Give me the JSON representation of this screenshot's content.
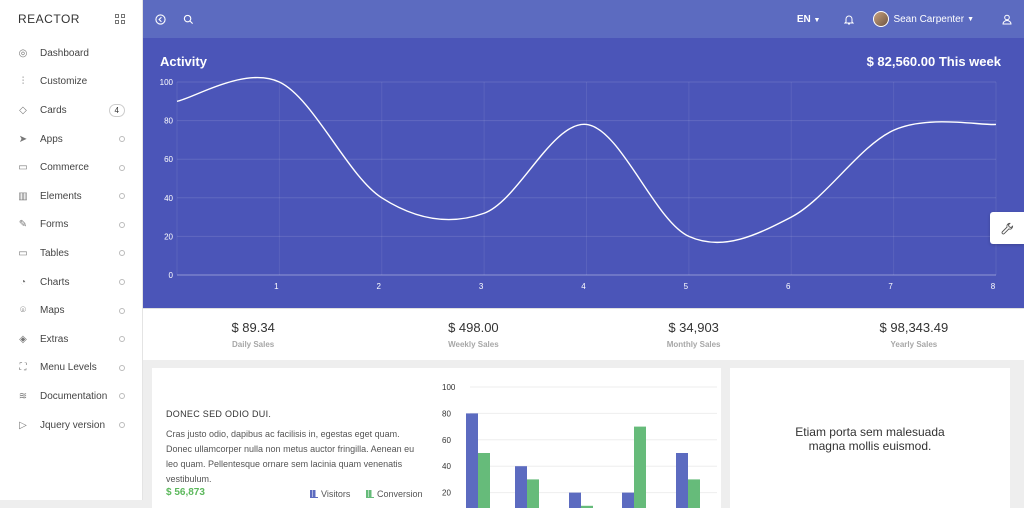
{
  "brand": "REACTOR",
  "sidebar": {
    "items": [
      {
        "label": "Dashboard",
        "icon": "compass-icon",
        "glyph": "◎"
      },
      {
        "label": "Customize",
        "icon": "sliders-icon",
        "glyph": "⫶"
      },
      {
        "label": "Cards",
        "icon": "droplet-icon",
        "glyph": "◇",
        "badge": "4"
      },
      {
        "label": "Apps",
        "icon": "send-icon",
        "glyph": "➤"
      },
      {
        "label": "Commerce",
        "icon": "cart-icon",
        "glyph": "▭"
      },
      {
        "label": "Elements",
        "icon": "book-icon",
        "glyph": "▥"
      },
      {
        "label": "Forms",
        "icon": "pencil-icon",
        "glyph": "✎"
      },
      {
        "label": "Tables",
        "icon": "monitor-icon",
        "glyph": "▭"
      },
      {
        "label": "Charts",
        "icon": "pie-chart-icon",
        "glyph": "◔"
      },
      {
        "label": "Maps",
        "icon": "map-pin-icon",
        "glyph": "⌾"
      },
      {
        "label": "Extras",
        "icon": "tag-icon",
        "glyph": "◈"
      },
      {
        "label": "Menu Levels",
        "icon": "expand-icon",
        "glyph": "⛶"
      },
      {
        "label": "Documentation",
        "icon": "layers-icon",
        "glyph": "≋"
      },
      {
        "label": "Jquery version",
        "icon": "play-icon",
        "glyph": "▷"
      }
    ]
  },
  "topbar": {
    "language": "EN",
    "user_name": "Sean Carpenter"
  },
  "activity": {
    "title": "Activity",
    "total": "$ 82,560.00 This week"
  },
  "stats": [
    {
      "value": "$ 89.34",
      "label": "Daily Sales"
    },
    {
      "value": "$ 498.00",
      "label": "Weekly Sales"
    },
    {
      "value": "$ 34,903",
      "label": "Monthly Sales"
    },
    {
      "value": "$ 98,343.49",
      "label": "Yearly Sales"
    }
  ],
  "card_info": {
    "heading": "DONEC SED ODIO DUI.",
    "paragraph": "Cras justo odio, dapibus ac facilisis in, egestas eget quam. Donec ullamcorper nulla non metus auctor fringilla. Aenean eu leo quam. Pellentesque ornare sem lacinia quam venenatis vestibulum.",
    "amount": "$ 56,873",
    "legend_visitors": "Visitors",
    "legend_conversion": "Conversion"
  },
  "card_quote": {
    "text": "Etiam porta sem malesuada magna mollis euismod."
  },
  "colors": {
    "topbar": "#5c6bc0",
    "activity_bg": "#4b55b8",
    "visitors": "#5c6bc0",
    "conversion": "#66bb7a",
    "amount_green": "#5cb85c"
  },
  "chart_data": [
    {
      "type": "line",
      "title": "Activity",
      "x": [
        0,
        1,
        2,
        3,
        4,
        5,
        6,
        7,
        8
      ],
      "x_ticks": [
        "1",
        "2",
        "3",
        "4",
        "5",
        "6",
        "7",
        "8"
      ],
      "y_ticks": [
        "0",
        "20",
        "40",
        "60",
        "80",
        "100"
      ],
      "ylim": [
        0,
        100
      ],
      "xlim": [
        0,
        8
      ],
      "series": [
        {
          "values": [
            90,
            100,
            40,
            32,
            78,
            20,
            30,
            75,
            78
          ]
        }
      ],
      "grid": true
    },
    {
      "type": "bar",
      "y_ticks": [
        "20",
        "40",
        "60",
        "80",
        "100"
      ],
      "ylim": [
        0,
        100
      ],
      "series": [
        {
          "name": "Visitors",
          "values": [
            80,
            40,
            20,
            20,
            50
          ]
        },
        {
          "name": "Conversion",
          "values": [
            50,
            30,
            10,
            70,
            30
          ]
        }
      ]
    }
  ]
}
